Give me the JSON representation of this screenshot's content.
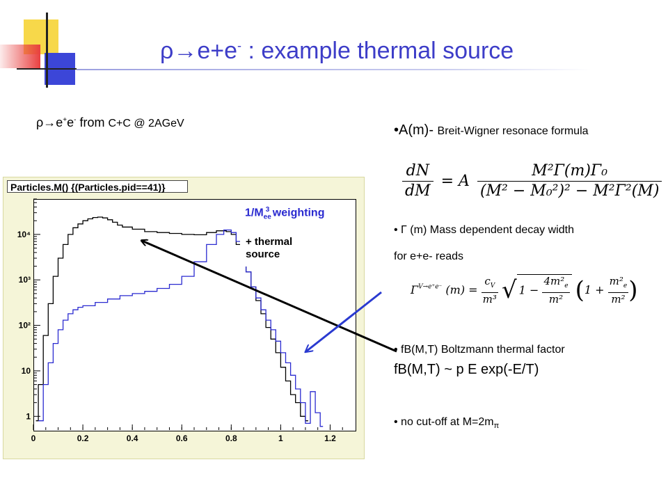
{
  "title": {
    "main_prefix": "ρ→e+e",
    "main_sup": "-",
    "main_suffix": " : example  thermal source"
  },
  "subtitle": {
    "prefix": "ρ→e",
    "sup1": "+",
    "mid": "e",
    "sup2": "-",
    "from": " from ",
    "system": " C+C @ 2AGeV"
  },
  "plot": {
    "title": "Particles.M() {(Particles.pid==41)}",
    "weighting_prefix": "1/M",
    "weighting_sub": "ee",
    "weighting_sup": "3",
    "weighting_suffix": " weighting",
    "thermal_line1": "+ thermal",
    "thermal_line2": "source",
    "x_tick_labels": [
      "0",
      "0.2",
      "0.4",
      "0.6",
      "0.8",
      "1",
      "1.2"
    ],
    "y_tick_labels": [
      "1",
      "10",
      "10²",
      "10³",
      "10⁴"
    ]
  },
  "chart_data": {
    "type": "line",
    "title": "Particles.M() {(Particles.pid==41)}",
    "xlabel": "",
    "ylabel": "",
    "xlim": [
      0,
      1.3
    ],
    "ylim": [
      0.5,
      60000
    ],
    "yscale": "log",
    "grid": false,
    "series": [
      {
        "name": "",
        "color": "#000000",
        "x": [
          0.01,
          0.02,
          0.04,
          0.06,
          0.08,
          0.1,
          0.12,
          0.14,
          0.16,
          0.18,
          0.2,
          0.22,
          0.24,
          0.26,
          0.28,
          0.3,
          0.32,
          0.34,
          0.36,
          0.4,
          0.45,
          0.5,
          0.55,
          0.6,
          0.65,
          0.7,
          0.74,
          0.78,
          0.8,
          0.82,
          0.84,
          0.86,
          0.88,
          0.9,
          0.92,
          0.94,
          0.96,
          0.98,
          1.0,
          1.02,
          1.04,
          1.06,
          1.08,
          1.1
        ],
        "values": [
          0.8,
          5,
          60,
          300,
          1200,
          3000,
          6000,
          10000,
          14000,
          17000,
          20000,
          22000,
          23500,
          24000,
          23000,
          21000,
          18500,
          16000,
          14500,
          13000,
          11500,
          11000,
          10500,
          10000,
          9800,
          11000,
          12000,
          11500,
          10000,
          6000,
          3000,
          1500,
          700,
          350,
          180,
          90,
          50,
          25,
          12,
          6,
          3,
          2,
          1,
          0.8
        ]
      },
      {
        "name": "",
        "color": "#2a2ad0",
        "x": [
          0.02,
          0.04,
          0.06,
          0.08,
          0.1,
          0.12,
          0.14,
          0.16,
          0.18,
          0.2,
          0.25,
          0.3,
          0.35,
          0.4,
          0.45,
          0.5,
          0.55,
          0.6,
          0.65,
          0.7,
          0.74,
          0.77,
          0.8,
          0.82,
          0.84,
          0.86,
          0.88,
          0.9,
          0.92,
          0.94,
          0.96,
          0.98,
          1.0,
          1.02,
          1.04,
          1.06,
          1.08,
          1.1,
          1.12,
          1.14,
          1.16
        ],
        "values": [
          0.8,
          5,
          15,
          40,
          80,
          130,
          180,
          220,
          250,
          270,
          320,
          380,
          450,
          500,
          560,
          650,
          800,
          1200,
          2500,
          6000,
          10000,
          12500,
          11000,
          7000,
          3500,
          1500,
          700,
          400,
          220,
          130,
          80,
          45,
          25,
          15,
          8,
          4,
          2,
          0.7,
          3.5,
          1.2,
          0.6
        ]
      }
    ]
  },
  "right": {
    "bullet_a_main": "•A(m)- ",
    "bullet_a_small": "Breit-Wigner resonace formula",
    "bullet_gamma": "•  Γ (m)  Mass dependent decay width",
    "reads": "for e+e- reads",
    "bullet_fb": "•  fB(M,T) Boltzmann thermal factor",
    "fb_formula": "fB(M,T) ~ p E exp(-E/T)",
    "bullet_cut_prefix": "• no cut-off at M=2m",
    "bullet_cut_sub": "π"
  },
  "formula_bw": {
    "lhs_num": "dN",
    "lhs_den": "dM",
    "eq_a": "= A",
    "rhs_num": "M²Γ(m)Γ₀",
    "rhs_den": "(M² − M₀²)² − M²Γ²(M)"
  },
  "formula_gamma": {
    "lhs": "Γ",
    "lhs_sup": "V→e⁺e⁻",
    "arg": "(m) =",
    "c_num": "c",
    "c_sub": "V",
    "c_den": "m³",
    "one": "1 −",
    "m1_num": "4m²",
    "m1_sub": "e",
    "m1_den": "m²",
    "one2": "1 +",
    "m2_num": "m²",
    "m2_sub": "e",
    "m2_den": "m²"
  },
  "colors": {
    "title": "#3d3dc8",
    "thermal": "#2a2ad0",
    "arrow_black": "#000000",
    "arrow_blue": "#2a3ad0"
  }
}
